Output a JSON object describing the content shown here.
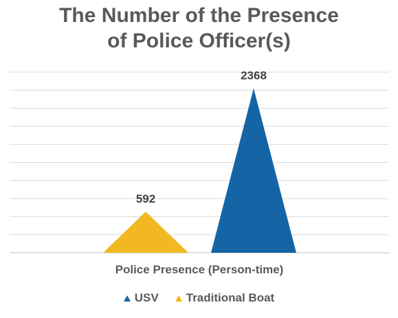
{
  "chart_data": {
    "type": "bar",
    "title_lines": [
      "The Number of the Presence",
      "of Police Officer(s)"
    ],
    "categories": [
      "Police Presence (Person-time)"
    ],
    "xlabel": "Police Presence (Person-time)",
    "ylabel": "",
    "ylim": [
      0,
      2600
    ],
    "grid": true,
    "legend_position": "bottom",
    "series": [
      {
        "name": "USV",
        "values": [
          2368
        ],
        "color": "#1565a6"
      },
      {
        "name": "Traditional Boat",
        "values": [
          592
        ],
        "color": "#f2b821"
      }
    ],
    "data_labels": [
      "592",
      "2368"
    ]
  }
}
